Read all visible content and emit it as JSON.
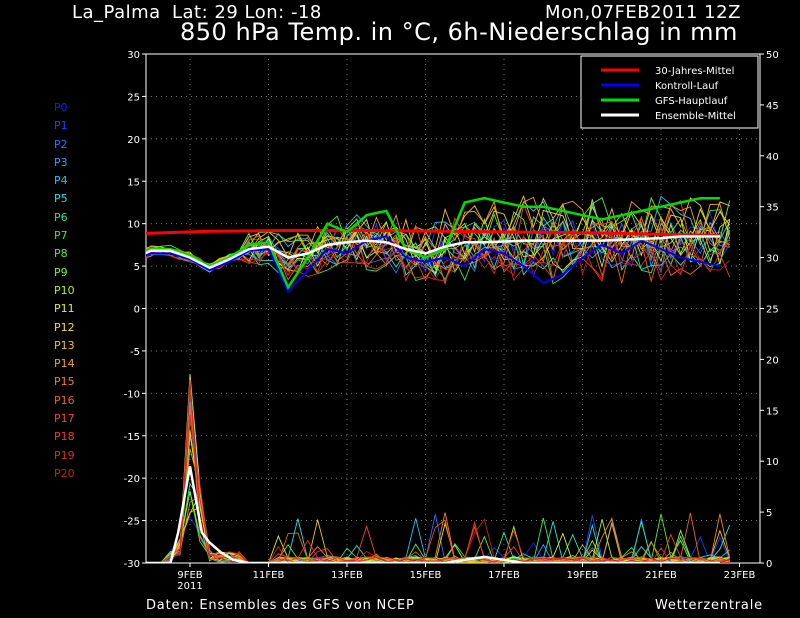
{
  "header": {
    "location": "La_Palma",
    "coords": "Lat: 29 Lon: -18",
    "run": "Mon,07FEB2011 12Z",
    "title": "850 hPa Temp. in °C, 6h-Niederschlag in mm"
  },
  "footer": {
    "source": "Daten: Ensembles des GFS von NCEP",
    "brand": "Wetterzentrale"
  },
  "members": [
    {
      "label": "P0",
      "color": "#1a1aff"
    },
    {
      "label": "P1",
      "color": "#2040ff"
    },
    {
      "label": "P2",
      "color": "#2a70ff"
    },
    {
      "label": "P3",
      "color": "#2a9aff"
    },
    {
      "label": "P4",
      "color": "#20c0ff"
    },
    {
      "label": "P5",
      "color": "#20e0e0"
    },
    {
      "label": "P6",
      "color": "#20e8a0"
    },
    {
      "label": "P7",
      "color": "#30e860"
    },
    {
      "label": "P8",
      "color": "#50f030"
    },
    {
      "label": "P9",
      "color": "#80f020"
    },
    {
      "label": "P10",
      "color": "#b0f020"
    },
    {
      "label": "P11",
      "color": "#e0f020"
    },
    {
      "label": "P12",
      "color": "#f0e020"
    },
    {
      "label": "P13",
      "color": "#f0c020"
    },
    {
      "label": "P14",
      "color": "#f0a020"
    },
    {
      "label": "P15",
      "color": "#f08020"
    },
    {
      "label": "P16",
      "color": "#f06020"
    },
    {
      "label": "P17",
      "color": "#f04a20"
    },
    {
      "label": "P18",
      "color": "#f03a20"
    },
    {
      "label": "P19",
      "color": "#e02a20"
    },
    {
      "label": "P20",
      "color": "#c81e1e"
    }
  ],
  "chart_data": {
    "type": "line",
    "title": "850 hPa Temp. in °C, 6h-Niederschlag in mm",
    "x_ticks": [
      "9FEB",
      "11FEB",
      "13FEB",
      "15FEB",
      "17FEB",
      "19FEB",
      "21FEB",
      "23FEB"
    ],
    "x_year_label": "2011",
    "x_range": [
      "2011-02-07T18",
      "2011-02-23T12"
    ],
    "y_left": {
      "min": -30,
      "max": 30,
      "ticks": [
        30,
        25,
        20,
        15,
        10,
        5,
        0,
        -5,
        -10,
        -15,
        -20,
        -25,
        -30
      ]
    },
    "y_right": {
      "min": 0,
      "max": 50,
      "ticks": [
        50,
        45,
        40,
        35,
        30,
        25,
        20,
        15,
        10,
        5,
        0
      ]
    },
    "grid": true,
    "legend_position": "top-right",
    "legend": [
      {
        "name": "30-Jahres-Mittel",
        "color": "#ff0000"
      },
      {
        "name": "Kontroll-Lauf",
        "color": "#0000ff"
      },
      {
        "name": "GFS-Hauptlauf",
        "color": "#00dd00"
      },
      {
        "name": "Ensemble-Mittel",
        "color": "#ffffff"
      }
    ],
    "temp_ensemble_mean": [
      [
        0,
        5.8
      ],
      [
        0.5,
        6.8
      ],
      [
        1,
        6.8
      ],
      [
        1.5,
        6.0
      ],
      [
        2,
        4.8
      ],
      [
        2.5,
        5.8
      ],
      [
        3,
        7.0
      ],
      [
        3.5,
        7.3
      ],
      [
        4,
        6.0
      ],
      [
        4.5,
        6.5
      ],
      [
        5,
        7.5
      ],
      [
        5.5,
        7.8
      ],
      [
        6,
        8.0
      ],
      [
        6.5,
        7.8
      ],
      [
        7,
        7.0
      ],
      [
        7.5,
        6.5
      ],
      [
        8,
        7.3
      ],
      [
        8.5,
        7.8
      ],
      [
        9,
        7.8
      ],
      [
        9.5,
        7.9
      ],
      [
        10,
        8.0
      ],
      [
        10.5,
        8.0
      ],
      [
        11,
        8.0
      ],
      [
        11.5,
        8.0
      ],
      [
        12,
        8.0
      ],
      [
        12.5,
        8.1
      ],
      [
        13,
        8.2
      ],
      [
        13.5,
        8.3
      ],
      [
        14,
        8.5
      ],
      [
        14.5,
        8.5
      ],
      [
        15,
        8.5
      ]
    ],
    "temp_control_run": [
      [
        0,
        5.5
      ],
      [
        0.5,
        6.5
      ],
      [
        1,
        6.5
      ],
      [
        1.5,
        5.8
      ],
      [
        2,
        4.5
      ],
      [
        2.5,
        5.5
      ],
      [
        3,
        6.8
      ],
      [
        3.5,
        7.0
      ],
      [
        4,
        2.0
      ],
      [
        4.5,
        4.5
      ],
      [
        5,
        7.0
      ],
      [
        5.5,
        6.5
      ],
      [
        6,
        8.0
      ],
      [
        6.5,
        8.5
      ],
      [
        7,
        6.0
      ],
      [
        7.5,
        5.5
      ],
      [
        8,
        6.0
      ],
      [
        8.5,
        5.0
      ],
      [
        9,
        7.0
      ],
      [
        9.5,
        6.5
      ],
      [
        10,
        5.0
      ],
      [
        10.5,
        3.0
      ],
      [
        11,
        4.0
      ],
      [
        11.5,
        6.0
      ],
      [
        12,
        7.5
      ],
      [
        12.5,
        6.5
      ],
      [
        13,
        8.0
      ],
      [
        13.5,
        7.0
      ],
      [
        14,
        6.0
      ],
      [
        14.5,
        5.5
      ],
      [
        15,
        5.0
      ]
    ],
    "temp_main_run": [
      [
        0,
        6.0
      ],
      [
        0.5,
        7.0
      ],
      [
        1,
        7.0
      ],
      [
        1.5,
        6.3
      ],
      [
        2,
        5.0
      ],
      [
        2.5,
        6.0
      ],
      [
        3,
        7.5
      ],
      [
        3.5,
        7.8
      ],
      [
        4,
        2.5
      ],
      [
        4.5,
        6.0
      ],
      [
        5,
        10.0
      ],
      [
        5.5,
        9.0
      ],
      [
        6,
        11.0
      ],
      [
        6.5,
        11.5
      ],
      [
        7,
        7.0
      ],
      [
        7.5,
        6.0
      ],
      [
        8,
        7.0
      ],
      [
        8.5,
        12.5
      ],
      [
        9,
        13.0
      ],
      [
        9.5,
        12.5
      ],
      [
        10,
        12.0
      ],
      [
        10.5,
        12.0
      ],
      [
        11,
        11.5
      ],
      [
        11.5,
        11.0
      ],
      [
        12,
        10.5
      ],
      [
        12.5,
        11.0
      ],
      [
        13,
        11.5
      ],
      [
        13.5,
        12.0
      ],
      [
        14,
        12.5
      ],
      [
        14.5,
        13.0
      ],
      [
        15,
        13.0
      ]
    ],
    "temp_climate_mean": [
      [
        0,
        8.8
      ],
      [
        2,
        9.1
      ],
      [
        4,
        9.2
      ],
      [
        6,
        9.2
      ],
      [
        8,
        9.1
      ],
      [
        10,
        9.0
      ],
      [
        12,
        8.9
      ],
      [
        14,
        8.7
      ],
      [
        15,
        8.6
      ]
    ],
    "precip_ensemble_mean": [
      [
        0,
        0
      ],
      [
        1,
        0
      ],
      [
        1.2,
        3
      ],
      [
        1.5,
        9.5
      ],
      [
        1.8,
        3
      ],
      [
        2,
        2.0
      ],
      [
        2.3,
        1
      ],
      [
        2.6,
        0.3
      ],
      [
        3,
        0
      ],
      [
        8,
        0
      ],
      [
        8.5,
        0.3
      ],
      [
        9,
        0.6
      ],
      [
        9.5,
        0.3
      ],
      [
        10,
        0
      ],
      [
        15,
        0
      ]
    ],
    "precip_max_peak": {
      "x": 1.5,
      "value": 19
    }
  }
}
